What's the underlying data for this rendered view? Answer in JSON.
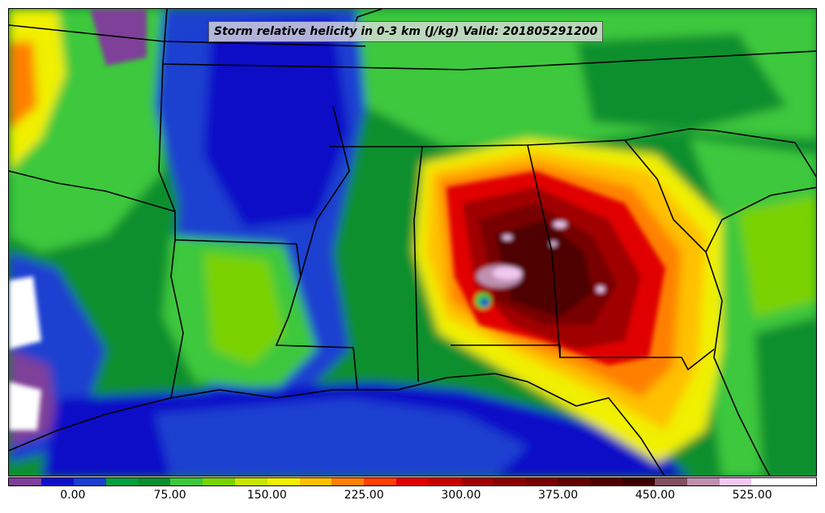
{
  "title": "Storm relative helicity in 0-3 km (J/kg) Valid: 201805291200",
  "colorbar": {
    "colors": [
      "#7e3f98",
      "#1010c8",
      "#1a3fd0",
      "#00a040",
      "#0a8f2f",
      "#3cc83c",
      "#7ad200",
      "#c8e600",
      "#f0f000",
      "#ffc000",
      "#ff8000",
      "#ff4000",
      "#e00000",
      "#c80000",
      "#a00000",
      "#8a0000",
      "#780000",
      "#640000",
      "#500000",
      "#3c0000",
      "#805060",
      "#c090b0",
      "#f0c8f0",
      "#ffffff",
      "#ffffff"
    ],
    "ticks": [
      {
        "label": "0.00",
        "value": 0
      },
      {
        "label": "75.00",
        "value": 75
      },
      {
        "label": "150.00",
        "value": 150
      },
      {
        "label": "225.00",
        "value": 225
      },
      {
        "label": "300.00",
        "value": 300
      },
      {
        "label": "375.00",
        "value": 375
      },
      {
        "label": "450.00",
        "value": 450
      },
      {
        "label": "525.00",
        "value": 525
      }
    ],
    "range": [
      -50,
      575
    ]
  }
}
